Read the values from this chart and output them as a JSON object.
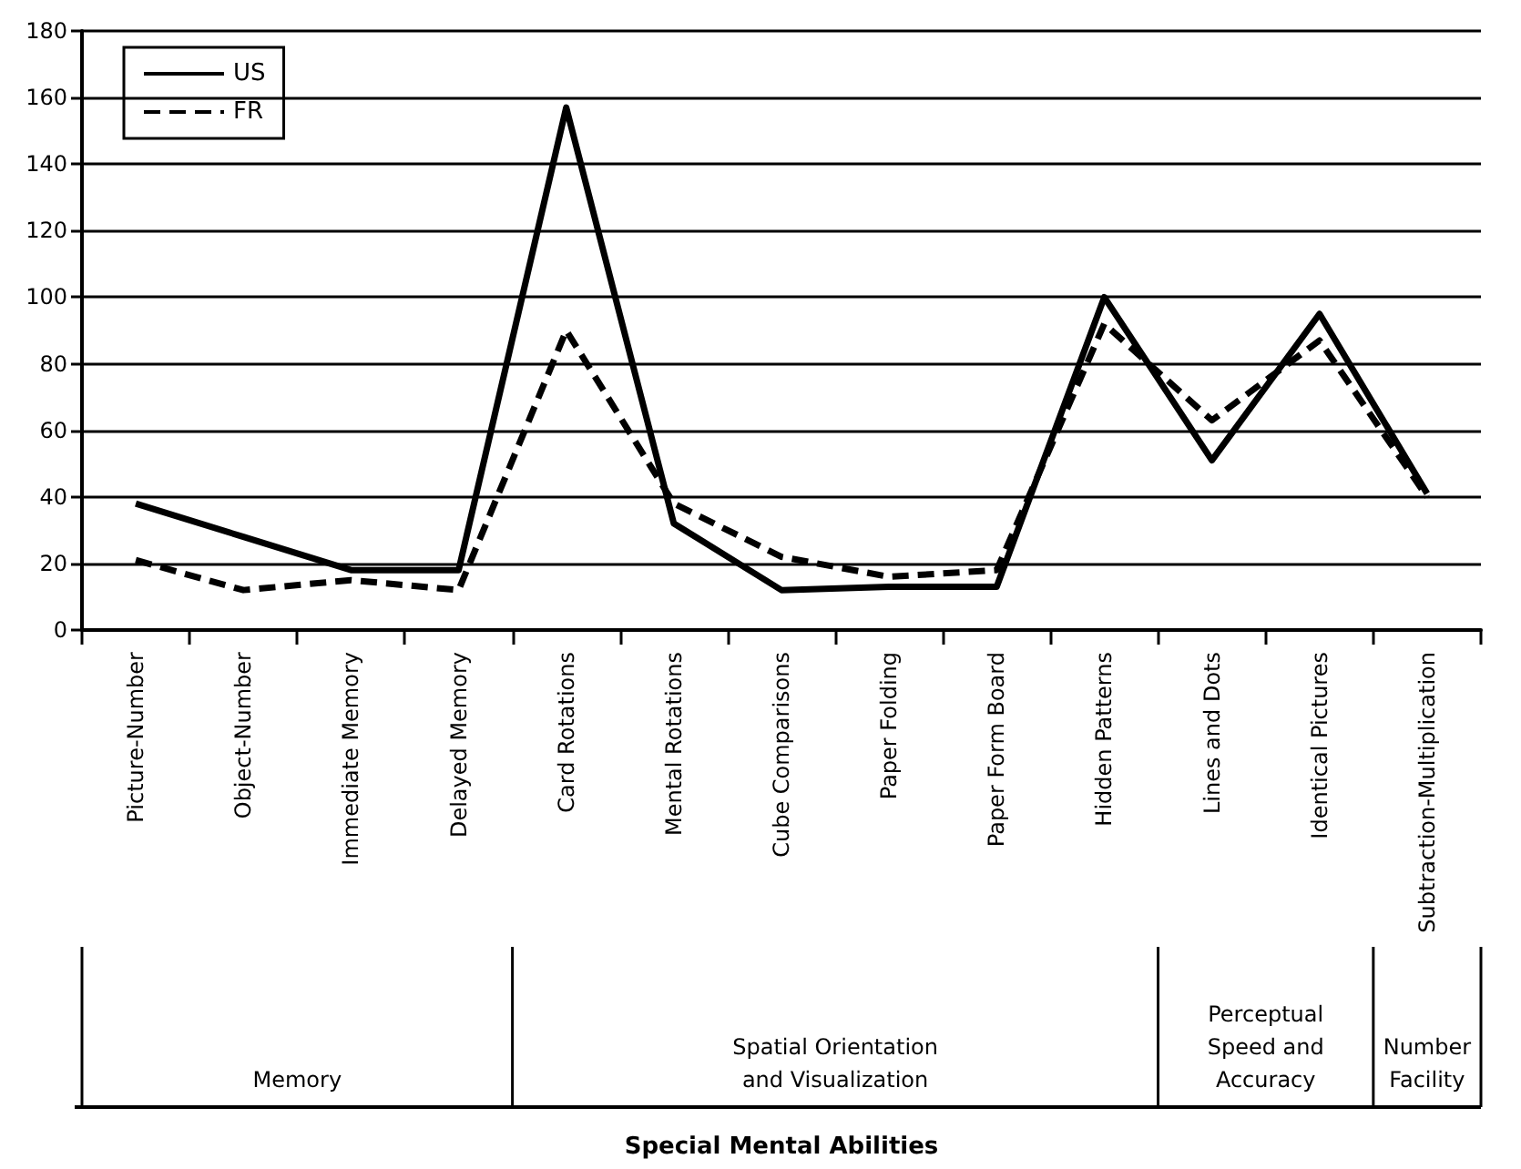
{
  "chart_data": {
    "type": "line",
    "categories": [
      "Picture-Number",
      "Object-Number",
      "Immediate Memory",
      "Delayed Memory",
      "Card Rotations",
      "Mental Rotations",
      "Cube Comparisons",
      "Paper Folding",
      "Paper Form Board",
      "Hidden Patterns",
      "Lines and Dots",
      "Identical Pictures",
      "Subtraction-Multiplication"
    ],
    "series": [
      {
        "name": "US",
        "color": "#000000",
        "line_style": "solid",
        "values": [
          38,
          28,
          18,
          18,
          157,
          32,
          12,
          13,
          13,
          100,
          51,
          95,
          41
        ]
      },
      {
        "name": "FR",
        "color": "#000000",
        "line_style": "dashed",
        "values": [
          21,
          12,
          15,
          12,
          90,
          38,
          22,
          16,
          18,
          92,
          63,
          87,
          40
        ]
      }
    ],
    "annotations": [
      "Memory",
      "Spatial Orientation\nand Visualization",
      "Perceptual\nSpeed and\nAccuracy",
      "Number\nFacility",
      "Special Mental Abilities"
    ],
    "ylim": [
      0,
      180
    ],
    "yticks": [
      0,
      20,
      40,
      60,
      80,
      100,
      120,
      140,
      160,
      180
    ],
    "grid": "y",
    "legend": "top left",
    "marker": "none"
  }
}
